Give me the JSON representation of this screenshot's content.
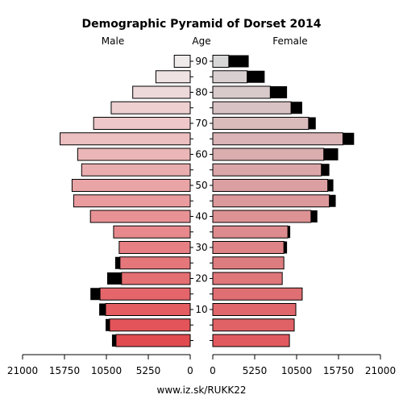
{
  "chart_data": {
    "type": "bar",
    "title": "Demographic Pyramid of Dorset 2014",
    "left_label": "Male",
    "center_label": "Age",
    "right_label": "Female",
    "age_groups": [
      "0-4",
      "5-9",
      "10-14",
      "15-19",
      "20-24",
      "25-29",
      "30-34",
      "35-39",
      "40-44",
      "45-49",
      "50-54",
      "55-59",
      "60-64",
      "65-69",
      "70-74",
      "75-79",
      "80-84",
      "85-89",
      "90+"
    ],
    "age_ticks": [
      "10",
      "20",
      "30",
      "40",
      "50",
      "60",
      "70",
      "80",
      "90"
    ],
    "x_ticks_left": [
      "21000",
      "15750",
      "10500",
      "5250",
      "0"
    ],
    "x_ticks_right": [
      "0",
      "5250",
      "10500",
      "15750",
      "21000"
    ],
    "xlim": [
      0,
      21000
    ],
    "series": [
      {
        "name": "Male",
        "values": [
          9800,
          10600,
          11400,
          12500,
          10400,
          9400,
          8900,
          9600,
          12500,
          14600,
          14800,
          13600,
          14100,
          16300,
          12100,
          9900,
          7200,
          4300,
          2000
        ]
      },
      {
        "name": "Female",
        "values": [
          9600,
          10200,
          10400,
          11200,
          8700,
          8900,
          9300,
          9700,
          13100,
          15400,
          15100,
          14600,
          15700,
          17700,
          12900,
          11200,
          9300,
          6500,
          4500
        ]
      }
    ],
    "male_black_overlay": [
      9300,
      10100,
      10600,
      11300,
      8600,
      8800,
      8900,
      9600,
      12500,
      14600,
      14800,
      13600,
      14100,
      16300,
      12100,
      9900,
      7200,
      4300,
      2000
    ],
    "female_black_overlay": [
      9600,
      10200,
      10400,
      11200,
      8700,
      8900,
      8900,
      9400,
      12300,
      14600,
      14400,
      13600,
      13900,
      16300,
      12000,
      9800,
      7200,
      4300,
      2000
    ],
    "footer": "www.iz.sk/RUKK22"
  }
}
